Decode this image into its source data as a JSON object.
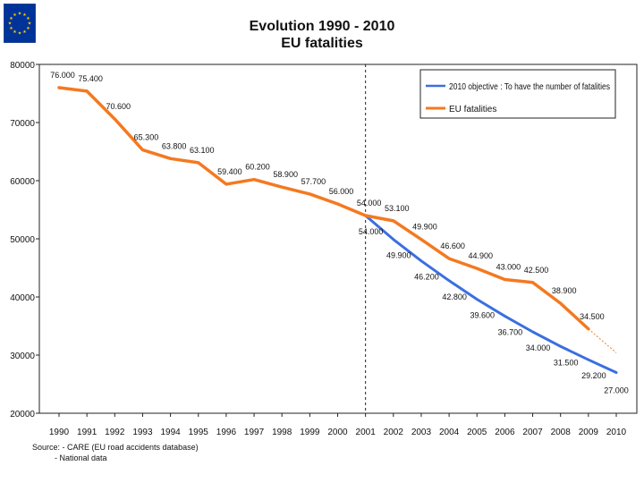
{
  "title_line1": "Evolution 1990 - 2010",
  "title_line2": "EU fatalities",
  "source": {
    "line1": "Source: - CARE (EU road accidents database)",
    "line2": "- National data"
  },
  "colors": {
    "fatalities": "#F47920",
    "objective": "#3B6FE0",
    "flag_blue": "#003399",
    "flag_star": "#FFCC00"
  },
  "chart_data": {
    "type": "line",
    "title": "Evolution 1990 - 2010",
    "subtitle": "EU fatalities",
    "xlabel": "",
    "ylabel": "",
    "ylim": [
      20000,
      80000
    ],
    "yticks": [
      20000,
      30000,
      40000,
      50000,
      60000,
      70000,
      80000
    ],
    "ytick_labels": [
      "20000",
      "30000",
      "40000",
      "50000",
      "60000",
      "70000",
      "80000"
    ],
    "categories": [
      "1990",
      "1991",
      "1992",
      "1993",
      "1994",
      "1995",
      "1996",
      "1997",
      "1998",
      "1999",
      "2000",
      "2001",
      "2002",
      "2003",
      "2004",
      "2005",
      "2006",
      "2007",
      "2008",
      "2009",
      "2010"
    ],
    "grid": false,
    "legend_position": "top-right",
    "divider_at": "2001",
    "series": [
      {
        "name": "2010 objective : To have the number of fatalities",
        "color": "#3B6FE0",
        "x": [
          "2001",
          "2002",
          "2003",
          "2004",
          "2005",
          "2006",
          "2007",
          "2008",
          "2009",
          "2010"
        ],
        "values": [
          54000,
          49900,
          46200,
          42800,
          39600,
          36700,
          34000,
          31500,
          29200,
          27000
        ],
        "labels": [
          "54.000",
          "49.900",
          "46.200",
          "42.800",
          "39.600",
          "36.700",
          "34.000",
          "31.500",
          "29.200",
          "27.000"
        ]
      },
      {
        "name": "EU fatalities",
        "color": "#F47920",
        "x": [
          "1990",
          "1991",
          "1992",
          "1993",
          "1994",
          "1995",
          "1996",
          "1997",
          "1998",
          "1999",
          "2000",
          "2001",
          "2002",
          "2003",
          "2004",
          "2005",
          "2006",
          "2007",
          "2008",
          "2009"
        ],
        "values": [
          76000,
          75400,
          70600,
          65300,
          63800,
          63100,
          59400,
          60200,
          58900,
          57700,
          56000,
          54000,
          53100,
          49900,
          46600,
          44900,
          43000,
          42500,
          38900,
          34500
        ],
        "labels": [
          "76.000",
          "75.400",
          "70.600",
          "65.300",
          "63.800",
          "63.100",
          "59.400",
          "60.200",
          "58.900",
          "57.700",
          "56.000",
          "54.000",
          "53.100",
          "49.900",
          "46.600",
          "44.900",
          "43.000",
          "42.500",
          "38.900",
          "34.500"
        ]
      }
    ]
  }
}
